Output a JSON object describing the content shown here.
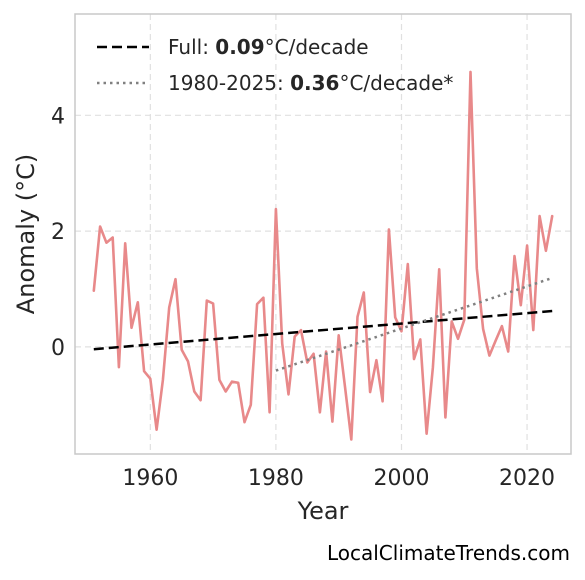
{
  "chart_data": {
    "type": "line",
    "xlabel": "Year",
    "ylabel": "Anomaly (°C)",
    "xlim": [
      1948,
      2027
    ],
    "ylim": [
      -1.85,
      5.75
    ],
    "x_ticks": [
      1960,
      1980,
      2000,
      2020
    ],
    "y_ticks": [
      0,
      2,
      4
    ],
    "grid": true,
    "legend_position": "top-left",
    "series": [
      {
        "color": "#e8898a",
        "style": "solid",
        "x": [
          1951,
          1952,
          1953,
          1954,
          1955,
          1956,
          1957,
          1958,
          1959,
          1960,
          1961,
          1962,
          1963,
          1964,
          1965,
          1966,
          1967,
          1968,
          1969,
          1970,
          1971,
          1972,
          1973,
          1974,
          1975,
          1976,
          1977,
          1978,
          1979,
          1980,
          1981,
          1982,
          1983,
          1984,
          1985,
          1986,
          1987,
          1988,
          1989,
          1990,
          1991,
          1992,
          1993,
          1994,
          1995,
          1996,
          1997,
          1998,
          1999,
          2000,
          2001,
          2002,
          2003,
          2004,
          2005,
          2006,
          2007,
          2008,
          2009,
          2010,
          2011,
          2012,
          2013,
          2014,
          2015,
          2016,
          2017,
          2018,
          2019,
          2020,
          2021,
          2022,
          2023,
          2024
        ],
        "y": [
          0.97,
          2.08,
          1.8,
          1.89,
          -0.35,
          1.79,
          0.33,
          0.77,
          -0.42,
          -0.55,
          -1.43,
          -0.57,
          0.68,
          1.17,
          -0.05,
          -0.25,
          -0.77,
          -0.92,
          0.8,
          0.75,
          -0.57,
          -0.77,
          -0.6,
          -0.62,
          -1.3,
          -1.0,
          0.74,
          0.85,
          -1.13,
          2.38,
          0.06,
          -0.82,
          0.18,
          0.29,
          -0.27,
          -0.12,
          -1.13,
          -0.08,
          -1.29,
          0.2,
          -0.69,
          -1.6,
          0.52,
          0.94,
          -0.78,
          -0.23,
          -0.94,
          2.03,
          0.51,
          0.27,
          1.43,
          -0.21,
          0.13,
          -1.5,
          -0.35,
          1.34,
          -1.22,
          0.44,
          0.14,
          0.47,
          4.75,
          1.36,
          0.31,
          -0.15,
          0.11,
          0.36,
          -0.08,
          1.57,
          0.72,
          1.75,
          0.29,
          2.26,
          1.66,
          2.26
        ]
      },
      {
        "name": "Full",
        "color": "#000000",
        "style": "dashed",
        "x": [
          1951,
          2024
        ],
        "y": [
          -0.04,
          0.62
        ]
      },
      {
        "name": "1980-2025",
        "color": "#808080",
        "style": "dotted",
        "x": [
          1980,
          2024
        ],
        "y": [
          -0.41,
          1.19
        ]
      }
    ]
  },
  "legend": {
    "items": [
      {
        "prefix": "Full: ",
        "value": "0.09",
        "suffix": "°C/decade"
      },
      {
        "prefix": "1980-2025: ",
        "value": "0.36",
        "suffix": "°C/decade*"
      }
    ]
  },
  "watermark": "LocalClimateTrends.com"
}
